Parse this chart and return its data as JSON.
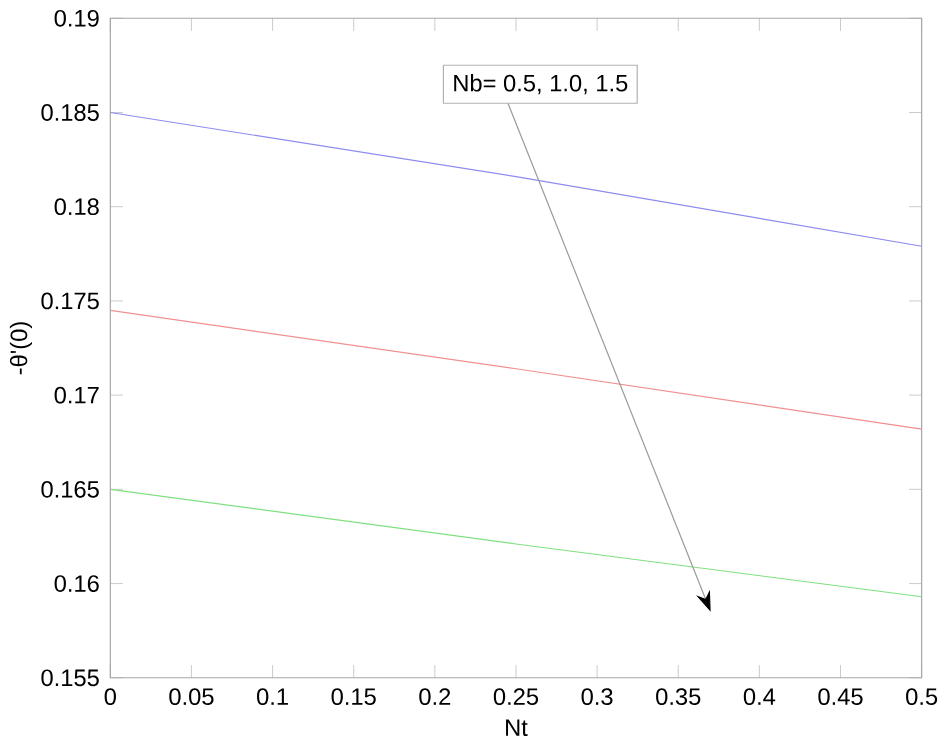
{
  "chart_data": {
    "type": "line",
    "xlabel": "Nt",
    "ylabel": "-θ'(0)",
    "annotations": [
      "Nb= 0.5, 1.0, 1.5"
    ],
    "x": [
      0,
      0.25,
      0.5
    ],
    "series": [
      {
        "color": "#8c8cf0",
        "values": [
          0.185,
          0.1816,
          0.1779
        ]
      },
      {
        "color": "#f09090",
        "values": [
          0.1745,
          0.1714,
          0.1682
        ]
      },
      {
        "color": "#80e080",
        "values": [
          0.165,
          0.1621,
          0.1593
        ]
      }
    ],
    "xlim": [
      0,
      0.5
    ],
    "ylim": [
      0.155,
      0.19
    ],
    "xticks": [
      0,
      0.05,
      0.1,
      0.15,
      0.2,
      0.25,
      0.3,
      0.35,
      0.4,
      0.45,
      0.5
    ],
    "yticks": [
      0.155,
      0.16,
      0.165,
      0.17,
      0.175,
      0.18,
      0.185,
      0.19
    ],
    "grid": false,
    "marker": "none",
    "line_style": "solid"
  }
}
